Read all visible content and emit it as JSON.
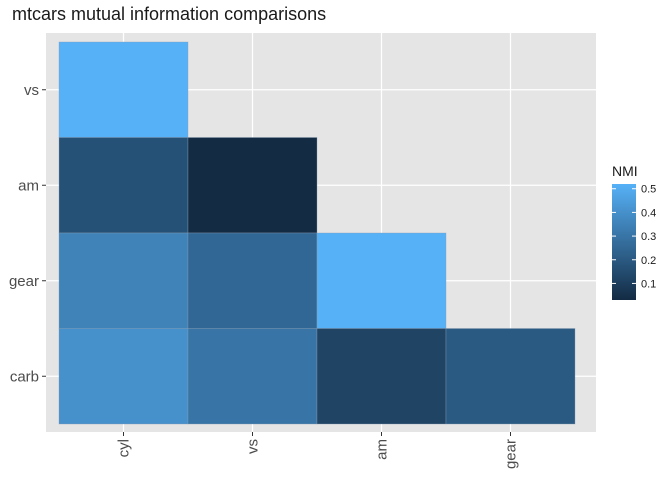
{
  "chart_data": {
    "type": "heatmap",
    "title": "mtcars mutual information comparisons",
    "x_categories": [
      "cyl",
      "vs",
      "am",
      "gear"
    ],
    "y_categories": [
      "carb",
      "gear",
      "am",
      "vs"
    ],
    "cells": [
      {
        "x": "cyl",
        "y": "vs",
        "value": 0.52
      },
      {
        "x": "cyl",
        "y": "am",
        "value": 0.17
      },
      {
        "x": "vs",
        "y": "am",
        "value": 0.03
      },
      {
        "x": "cyl",
        "y": "gear",
        "value": 0.35
      },
      {
        "x": "vs",
        "y": "gear",
        "value": 0.25
      },
      {
        "x": "am",
        "y": "gear",
        "value": 0.52
      },
      {
        "x": "cyl",
        "y": "carb",
        "value": 0.4
      },
      {
        "x": "vs",
        "y": "carb",
        "value": 0.3
      },
      {
        "x": "am",
        "y": "carb",
        "value": 0.12
      },
      {
        "x": "gear",
        "y": "carb",
        "value": 0.2
      }
    ],
    "legend": {
      "title": "NMI",
      "position": "right",
      "range": [
        0.03,
        0.52
      ],
      "ticks": [
        0.1,
        0.2,
        0.3,
        0.4,
        0.5
      ],
      "tick_labels": [
        "0.1",
        "0.2",
        "0.3",
        "0.4",
        "0.5"
      ],
      "low_color": "#132B43",
      "high_color": "#56B1F7"
    },
    "panel_background": "#E5E5E5",
    "grid": true
  }
}
